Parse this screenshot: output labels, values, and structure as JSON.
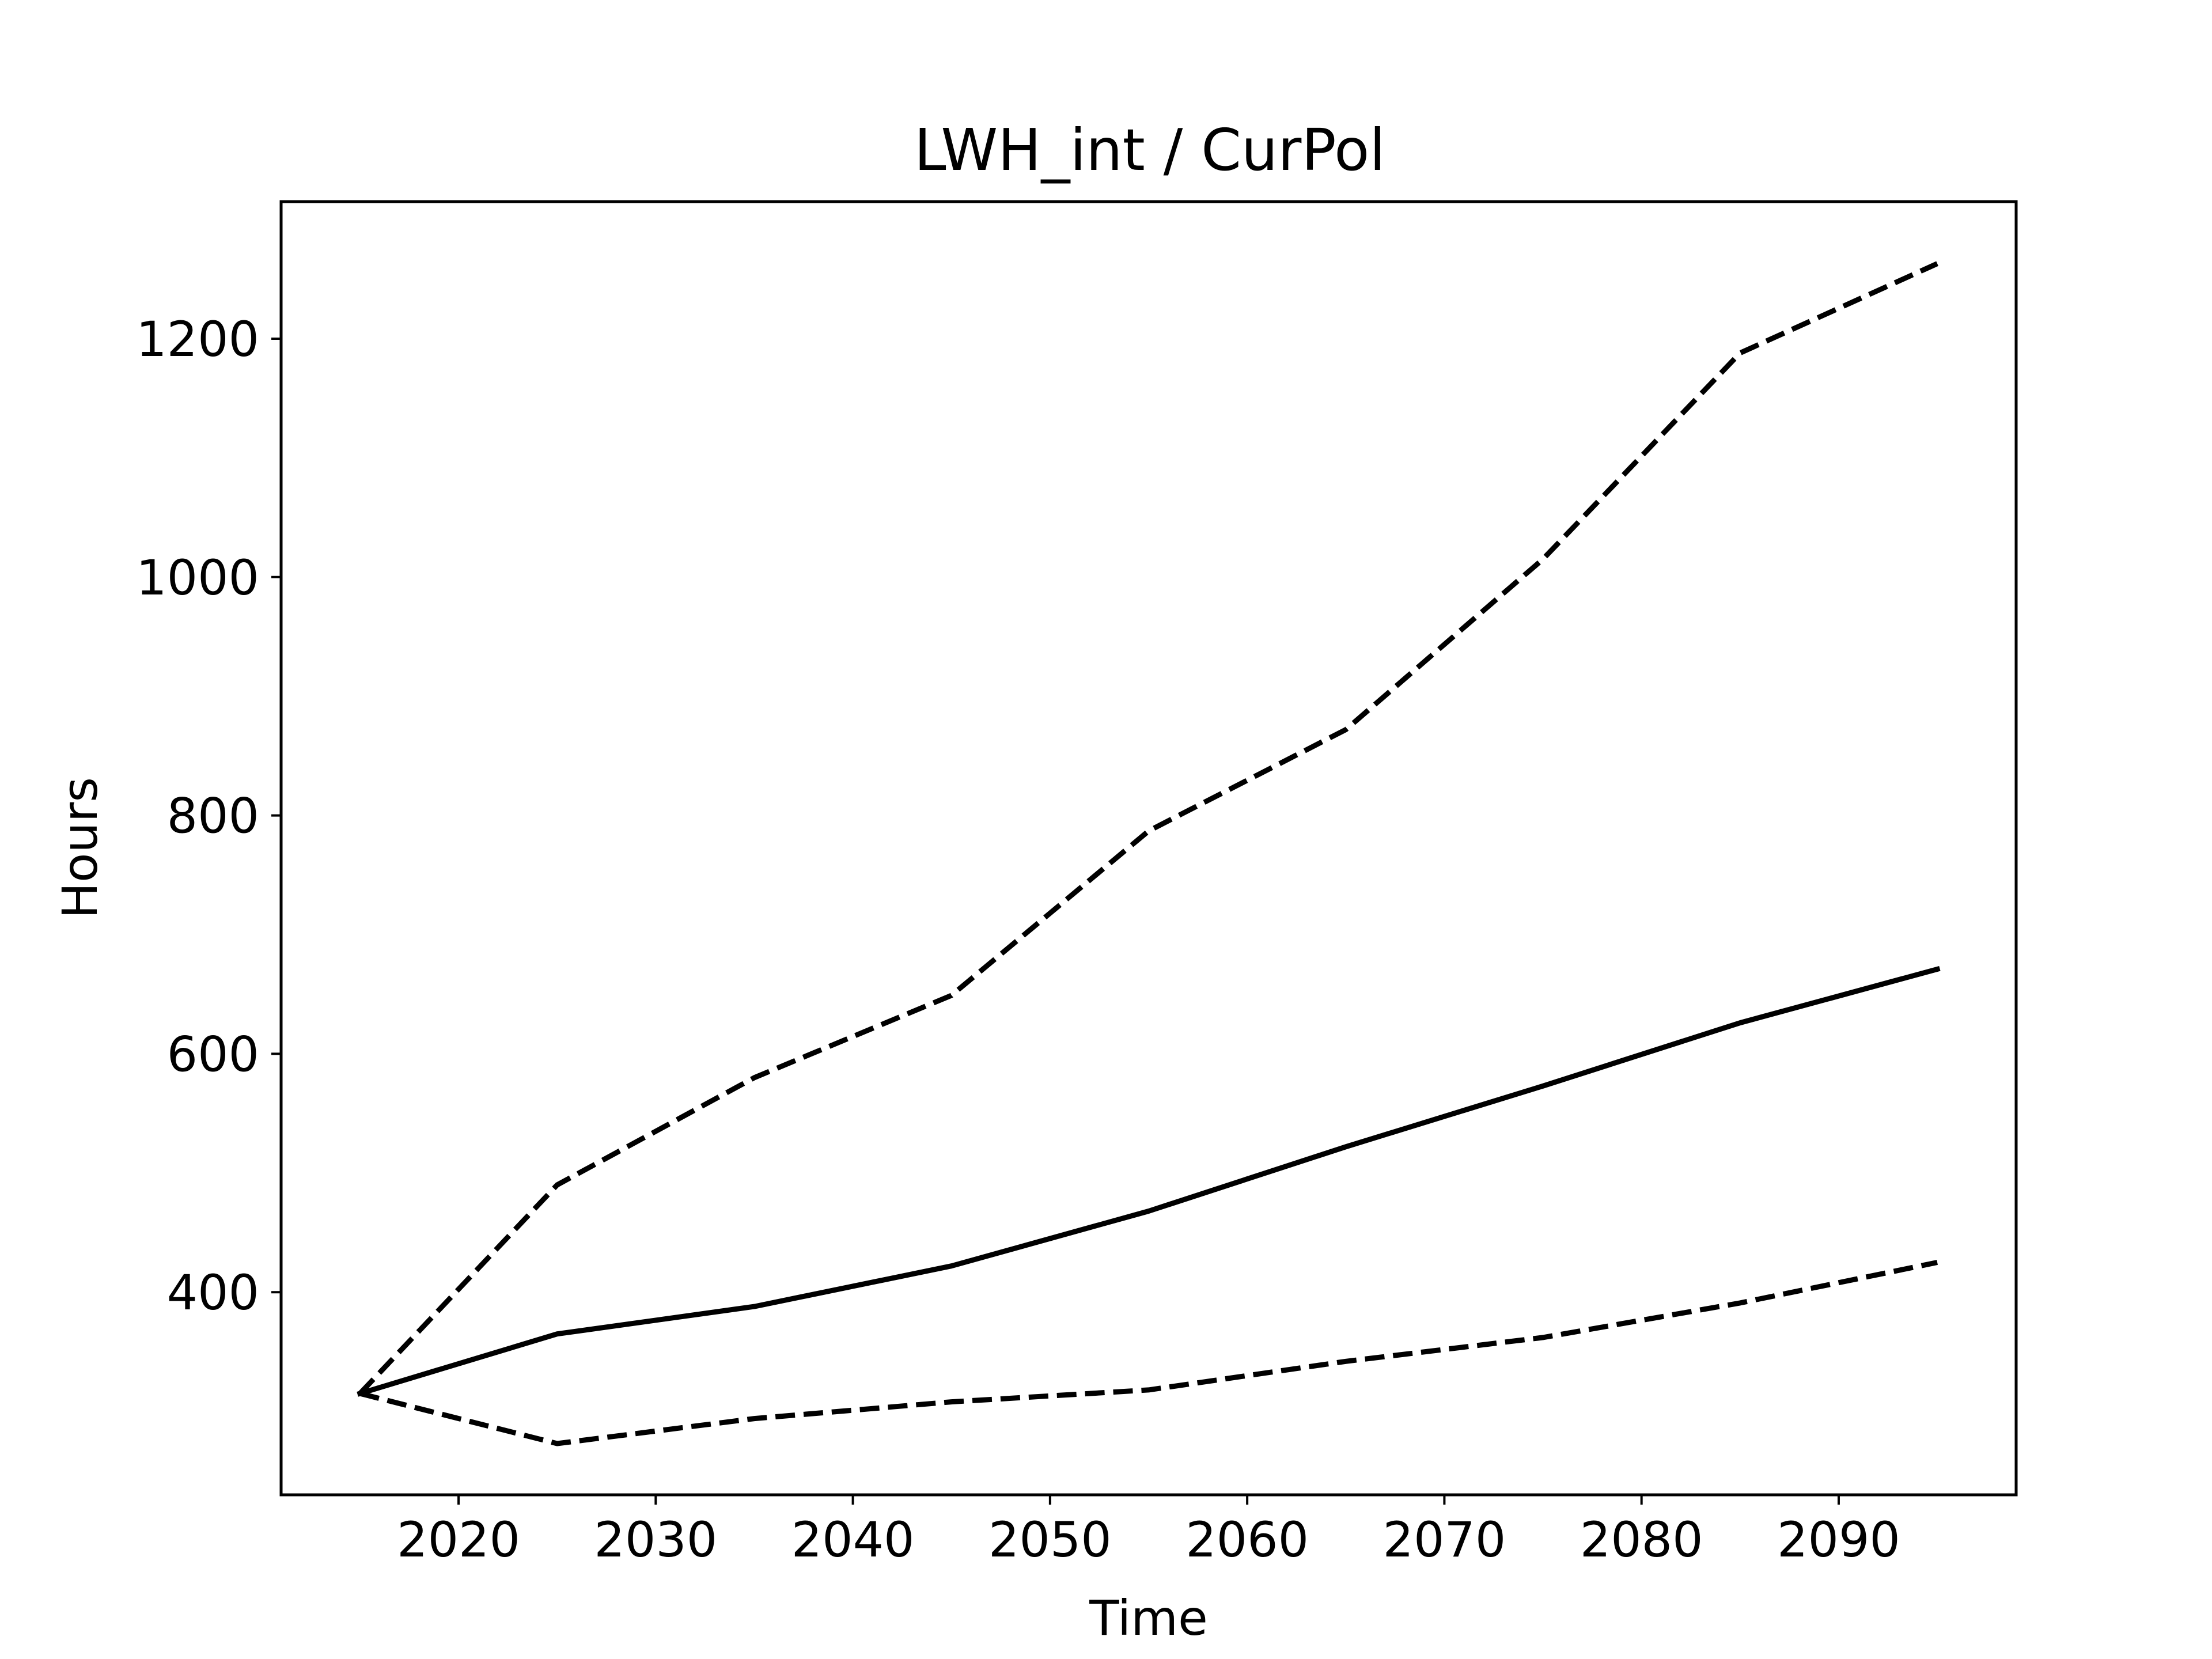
{
  "chart_data": {
    "type": "line",
    "title": "LWH_int / CurPol",
    "xlabel": "Time",
    "ylabel": "Hours",
    "xlim": [
      2011,
      2099
    ],
    "ylim": [
      230,
      1315
    ],
    "xticks": [
      2020,
      2030,
      2040,
      2050,
      2060,
      2070,
      2080,
      2090
    ],
    "yticks": [
      400,
      600,
      800,
      1000,
      1200
    ],
    "grid": false,
    "legend": "none",
    "x": [
      2015,
      2025,
      2035,
      2045,
      2055,
      2065,
      2075,
      2085,
      2095
    ],
    "series": [
      {
        "style": "solid",
        "color": "#000000",
        "values": [
          315,
          365,
          388,
          422,
          468,
          522,
          573,
          626,
          671
        ]
      },
      {
        "style": "dashed",
        "color": "#000000",
        "values": [
          315,
          490,
          580,
          649,
          787,
          872,
          1015,
          1188,
          1263
        ]
      },
      {
        "style": "dashed",
        "color": "#000000",
        "values": [
          315,
          273,
          294,
          308,
          318,
          342,
          362,
          391,
          425
        ]
      }
    ]
  }
}
